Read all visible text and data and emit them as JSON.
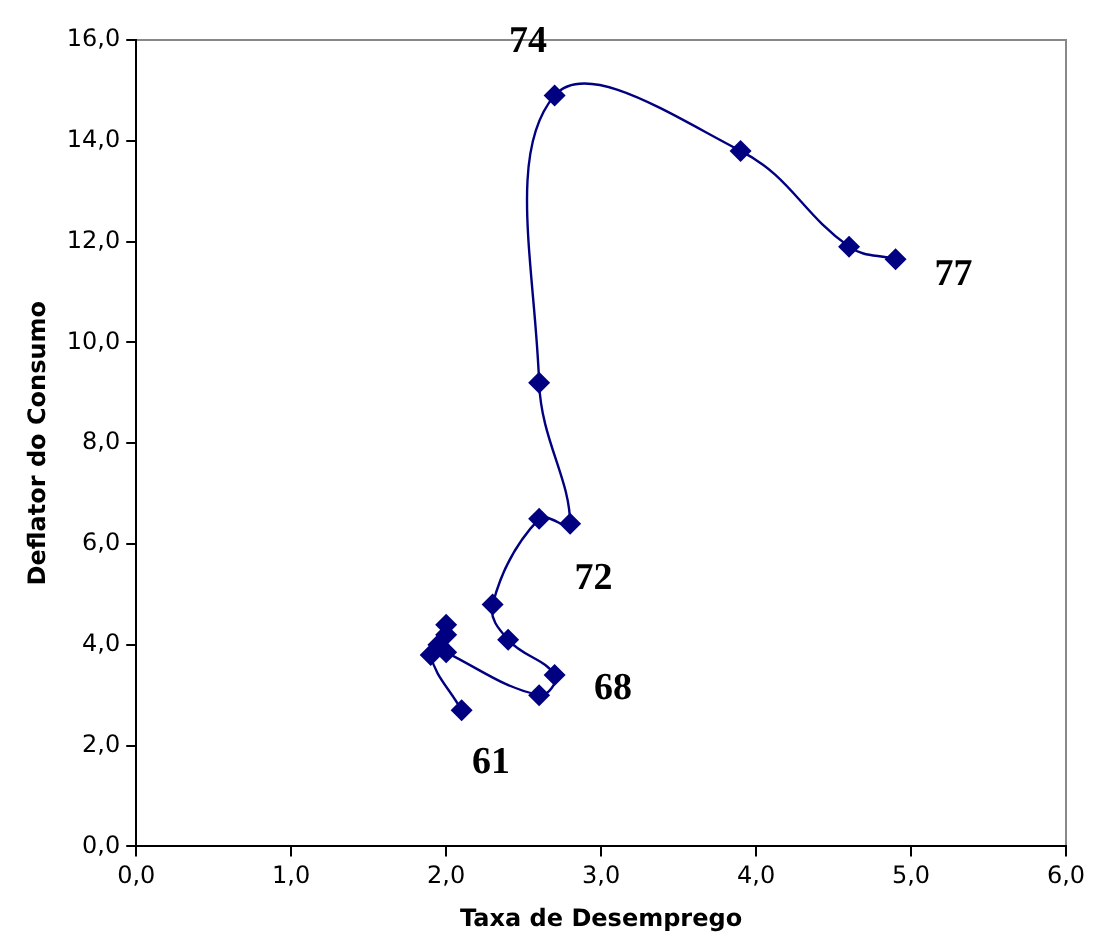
{
  "chart_data": {
    "type": "line",
    "xlabel": "Taxa de Desemprego",
    "ylabel": "Deflator do Consumo",
    "x": [
      2.1,
      1.9,
      2.0,
      2.0,
      1.95,
      2.0,
      2.6,
      2.7,
      2.4,
      2.3,
      2.6,
      2.8,
      2.6,
      2.7,
      3.9,
      4.6,
      4.9
    ],
    "series": [
      {
        "color": "#000080",
        "values": [
          2.7,
          3.8,
          4.2,
          4.4,
          4.0,
          3.85,
          3.0,
          3.4,
          4.1,
          4.8,
          6.5,
          6.4,
          9.2,
          14.9,
          13.8,
          11.9,
          11.65
        ]
      }
    ],
    "xlim": [
      0,
      6
    ],
    "ylim": [
      0,
      16
    ],
    "xticks": [
      {
        "value": 0,
        "label": "0,0"
      },
      {
        "value": 1,
        "label": "1,0"
      },
      {
        "value": 2,
        "label": "2,0"
      },
      {
        "value": 3,
        "label": "3,0"
      },
      {
        "value": 4,
        "label": "4,0"
      },
      {
        "value": 5,
        "label": "5,0"
      },
      {
        "value": 6,
        "label": "6,0"
      }
    ],
    "yticks": [
      {
        "value": 0,
        "label": "0,0"
      },
      {
        "value": 2,
        "label": "2,0"
      },
      {
        "value": 4,
        "label": "4,0"
      },
      {
        "value": 6,
        "label": "6,0"
      },
      {
        "value": 8,
        "label": "8,0"
      },
      {
        "value": 10,
        "label": "10,0"
      },
      {
        "value": 12,
        "label": "12,0"
      },
      {
        "value": 14,
        "label": "14,0"
      },
      {
        "value": 16,
        "label": "16,0"
      }
    ],
    "annotations": [
      {
        "text": "61",
        "x": 2.1,
        "y": 2.7
      },
      {
        "text": "68",
        "x": 2.7,
        "y": 3.4
      },
      {
        "text": "72",
        "x": 2.8,
        "y": 6.4
      },
      {
        "text": "74",
        "x": 2.7,
        "y": 14.9
      },
      {
        "text": "77",
        "x": 4.9,
        "y": 11.65
      }
    ],
    "marker": "diamond",
    "grid": false,
    "legend": false
  }
}
